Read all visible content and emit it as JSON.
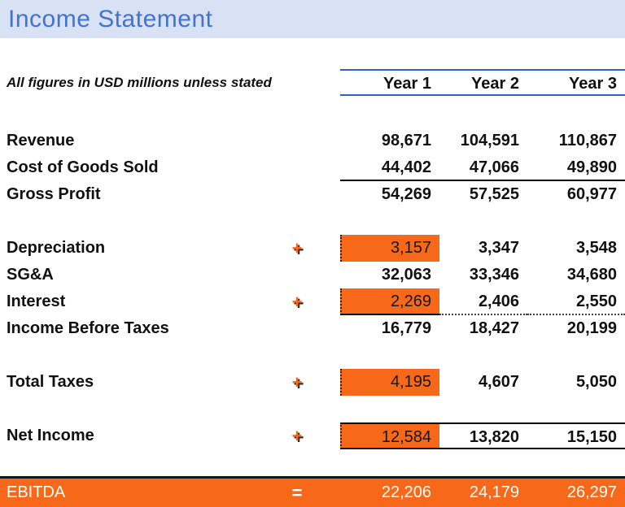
{
  "title": "Income Statement",
  "note": "All figures in USD millions unless stated",
  "columns": [
    "Year 1",
    "Year 2",
    "Year 3"
  ],
  "rows": [
    {
      "label": "Revenue",
      "sign": "",
      "values": [
        "98,671",
        "104,591",
        "110,867"
      ]
    },
    {
      "label": "Cost of Goods Sold",
      "sign": "",
      "values": [
        "44,402",
        "47,066",
        "49,890"
      ]
    },
    {
      "label": "Gross Profit",
      "sign": "",
      "values": [
        "54,269",
        "57,525",
        "60,977"
      ]
    },
    {
      "label": "Depreciation",
      "sign": "+",
      "values": [
        "3,157",
        "3,347",
        "3,548"
      ]
    },
    {
      "label": "SG&A",
      "sign": "",
      "values": [
        "32,063",
        "33,346",
        "34,680"
      ]
    },
    {
      "label": "Interest",
      "sign": "+",
      "values": [
        "2,269",
        "2,406",
        "2,550"
      ]
    },
    {
      "label": "Income Before Taxes",
      "sign": "",
      "values": [
        "16,779",
        "18,427",
        "20,199"
      ]
    },
    {
      "label": "Total Taxes",
      "sign": "+",
      "values": [
        "4,195",
        "4,607",
        "5,050"
      ]
    },
    {
      "label": "Net Income",
      "sign": "+",
      "values": [
        "12,584",
        "13,820",
        "15,150"
      ]
    }
  ],
  "ebitda": {
    "label": "EBITDA",
    "sign": "=",
    "values": [
      "22,206",
      "24,179",
      "26,297"
    ]
  },
  "colors": {
    "orange": "#F76919",
    "blue": "#4173D0",
    "band": "#D9E2F4",
    "line": "#2F62C9",
    "ink": "#111111"
  }
}
